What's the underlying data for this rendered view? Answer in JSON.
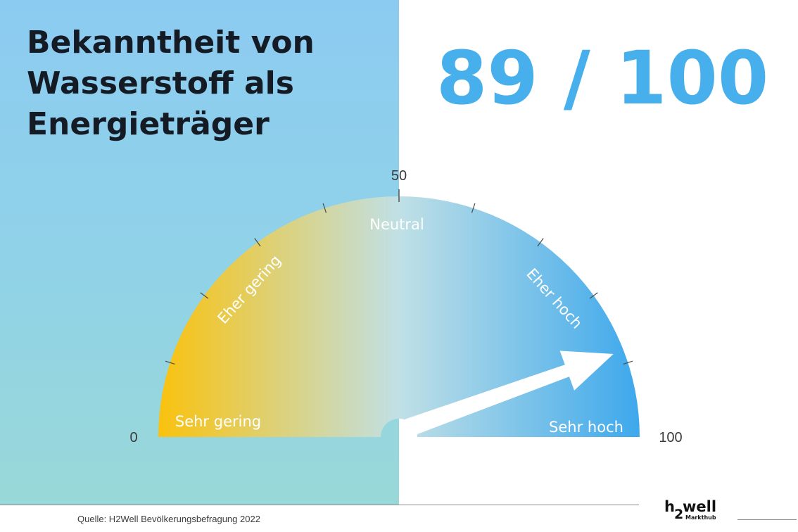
{
  "title": "Bekanntheit von\nWasserstoff als\nEnergieträger",
  "score_display": "89 / 100",
  "chart_data": {
    "type": "gauge",
    "title": "Bekanntheit von Wasserstoff als Energieträger",
    "value": 89,
    "min": 0,
    "max": 100,
    "tick_labels": [
      {
        "value": 0,
        "label": "0"
      },
      {
        "value": 50,
        "label": "50"
      },
      {
        "value": 100,
        "label": "100"
      }
    ],
    "minor_ticks": [
      10,
      20,
      30,
      40,
      60,
      70,
      80,
      90
    ],
    "zones": [
      {
        "label": "Sehr gering",
        "value": 5
      },
      {
        "label": "Eher gering",
        "value": 25
      },
      {
        "label": "Neutral",
        "value": 50
      },
      {
        "label": "Eher hoch",
        "value": 75
      },
      {
        "label": "Sehr hoch",
        "value": 95
      }
    ],
    "colors": {
      "low": "#f9c20e",
      "neutral": "#c0e0e6",
      "high": "#3da8ec",
      "title": "#151b24",
      "score": "#47b0ec"
    }
  },
  "footer": {
    "source": "Quelle: H2Well Bevölkerungsbefragung 2022"
  },
  "logo": {
    "h": "h",
    "two": "2",
    "well": "well",
    "sub": "Markthub"
  }
}
